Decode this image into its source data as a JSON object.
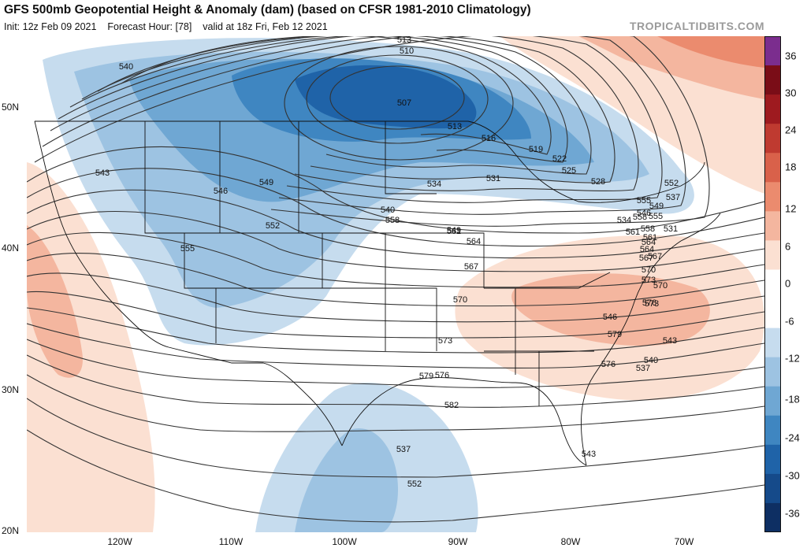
{
  "header": {
    "title": "GFS 500mb Geopotential Height & Anomaly (dam) (based on CFSR 1981-2010 Climatology)",
    "init": "Init: 12z Feb 09 2021",
    "forecast_hour": "Forecast Hour: [78]",
    "valid": "valid at 18z Fri, Feb 12 2021",
    "source": "TROPICALTIDBITS.COM"
  },
  "map": {
    "lat_labels": [
      "50N",
      "40N",
      "30N",
      "20N"
    ],
    "lon_labels": [
      "120W",
      "110W",
      "100W",
      "90W",
      "80W",
      "70W"
    ],
    "contour_labels": [
      "513",
      "510",
      "507",
      "513",
      "516",
      "519",
      "522",
      "525",
      "528",
      "531",
      "534",
      "537",
      "540",
      "543",
      "546",
      "549",
      "552",
      "555",
      "558",
      "561",
      "564",
      "567",
      "570",
      "573",
      "576",
      "579",
      "582",
      "537",
      "552",
      "543",
      "540",
      "549",
      "555",
      "546",
      "549",
      "552",
      "555",
      "558",
      "561",
      "564",
      "567",
      "570",
      "573",
      "576",
      "546",
      "543",
      "540",
      "537",
      "534",
      "531",
      "558",
      "561",
      "564",
      "567",
      "570",
      "573",
      "576",
      "579"
    ],
    "colors": {
      "land": "#ffffff",
      "lines": "#333333",
      "negative": "#2f6fb3",
      "positive": "#e07a5a"
    }
  },
  "colorbar": {
    "ticks": [
      "36",
      "30",
      "24",
      "18",
      "12",
      "6",
      "0",
      "-6",
      "-12",
      "-18",
      "-24",
      "-30",
      "-36"
    ],
    "colors": [
      "#7b2d8e",
      "#7a0d17",
      "#9e1a1f",
      "#bf3a30",
      "#d9614a",
      "#eb8b6e",
      "#f4b69f",
      "#fbe0d2",
      "#ffffff",
      "#ffffff",
      "#c6dcee",
      "#9dc3e2",
      "#6fa7d3",
      "#3f86c1",
      "#1f63a8",
      "#154a8a",
      "#0e2f63"
    ]
  }
}
